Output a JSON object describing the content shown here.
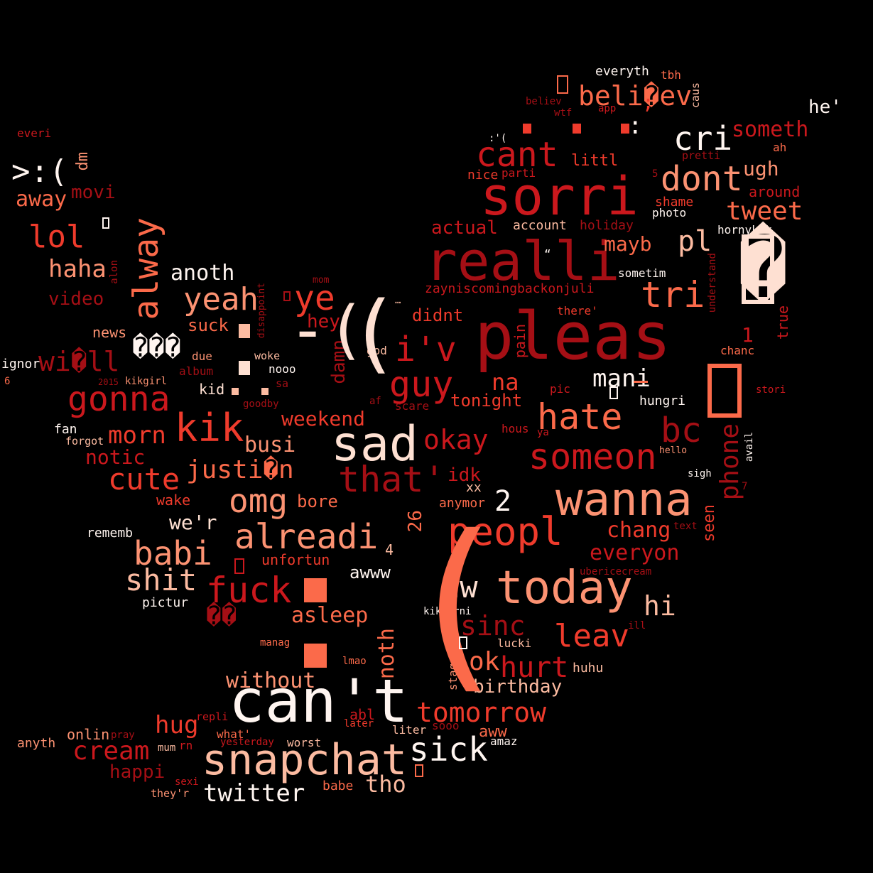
{
  "palette": {
    "dark_red": "#a50f15",
    "red": "#cb181d",
    "red_orange": "#ef3b2c",
    "coral": "#fb6a4a",
    "salmon": "#fc9272",
    "light_salmon": "#fcbba1",
    "pale": "#fee0d2",
    "near_white": "#fff5f0",
    "background": "#000000"
  },
  "words": [
    "pleas",
    "can't",
    "sorri",
    "realli",
    "snapchat",
    "sad",
    "wanna",
    "today",
    "peopl",
    "sick",
    "alreadi",
    "fuck",
    "kik",
    "omg",
    "gonna",
    "hate",
    "someon",
    "cant",
    "dont",
    "tri",
    "tweet",
    "cri",
    "that'",
    "guy",
    "i'v",
    "ye",
    "yeah",
    "alway",
    "lol",
    "babi",
    "cute",
    "shit",
    "justi�n",
    "beli�ev",
    "wi�ll",
    "tomorrow",
    "sinc",
    "leav",
    "aw",
    "hurt",
    "bc",
    "phone",
    "hi",
    "ok",
    "okay",
    "morn",
    "gonna",
    "haha",
    "cream",
    "hug",
    "twitter",
    "tho",
    "mani",
    "na",
    "asleep",
    "noth",
    "birthday",
    "without",
    "chang",
    "everyon",
    "someth",
    "ugh",
    "pl",
    "mayb",
    "away",
    "anoth",
    "video",
    "notic",
    "busi",
    "weekend",
    "actual",
    "littl",
    "everyth",
    "tbh",
    "he'",
    "around",
    "ah",
    "shame",
    "account",
    "holiday",
    "hornykik",
    "zayniscomingbackonjuli",
    "didnt",
    "hey",
    "suck",
    "damn",
    "tonight",
    "idk",
    "anymor",
    "bore",
    "we'r",
    "unfortun",
    "awww",
    "pictur",
    "rememb",
    "wake",
    "xx",
    "seen",
    "true",
    "chanc",
    "photo",
    "sometim",
    "hungri",
    "pic",
    "hous",
    "scare",
    "ya",
    "news",
    "kid",
    "due",
    "woke",
    "nooo",
    "album",
    "kikgirl",
    "god",
    "af",
    "onlin",
    "anyth",
    "happi",
    "mum",
    "rn",
    "yesterday",
    "worst",
    "babe",
    "liter",
    "sooo",
    "aww",
    "amaz",
    "later",
    "lmao",
    "abl",
    "what'",
    "repli",
    "pray",
    "sexi",
    "they'r",
    "manag",
    "lucki",
    "huhu",
    "kikhorni",
    "stage",
    "ignor",
    "everi",
    "fan",
    "forgot",
    "dm",
    "movi",
    "alon",
    "mom",
    "disappoint",
    "goodby",
    "sa",
    "2015",
    "nice",
    "parti",
    "app",
    "wtf",
    "believ",
    "pretti",
    "caus",
    "understand",
    "there'",
    "sigh",
    "hello",
    "avail",
    "stori",
    "text",
    "ubericecream",
    "ill",
    "pain",
    "26",
    "26",
    "1",
    "2",
    "4",
    "5",
    "6",
    "7",
    ">:(",
    "-(",
    "(",
    "(",
    ":'(",
    "…",
    "“",
    "���",
    "��",
    "�",
    ":",
    ";"
  ]
}
